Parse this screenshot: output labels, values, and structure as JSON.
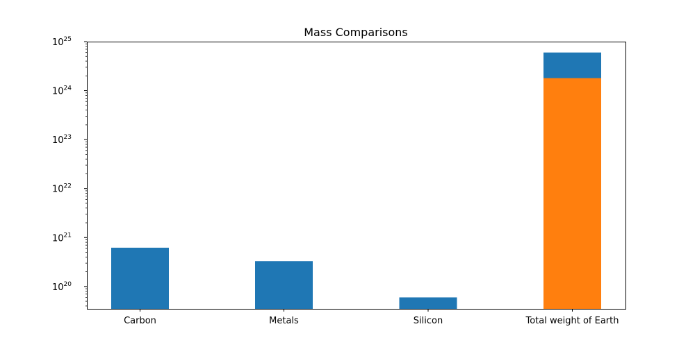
{
  "chart_data": {
    "type": "bar",
    "title": "Mass Comparisons",
    "xlabel": "",
    "ylabel": "",
    "categories": [
      "Carbon",
      "Metals",
      "Silicon",
      "Total weight of Earth"
    ],
    "y_scale": "log",
    "ylim": [
      3.5e+19,
      1e+25
    ],
    "y_ticks": [
      {
        "value": 1e+20,
        "base": "10",
        "exp": "20"
      },
      {
        "value": 1e+21,
        "base": "10",
        "exp": "21"
      },
      {
        "value": 1e+22,
        "base": "10",
        "exp": "22"
      },
      {
        "value": 1e+23,
        "base": "10",
        "exp": "23"
      },
      {
        "value": 1e+24,
        "base": "10",
        "exp": "24"
      },
      {
        "value": 1e+25,
        "base": "10",
        "exp": "25"
      }
    ],
    "series": [
      {
        "color": "#1f77b4",
        "values": [
          6.2e+20,
          3.3e+20,
          6e+19,
          6e+24
        ]
      },
      {
        "color": "#ff7f0e",
        "values": [
          null,
          null,
          null,
          1.8e+24
        ]
      }
    ],
    "grid": false,
    "legend": "none"
  }
}
